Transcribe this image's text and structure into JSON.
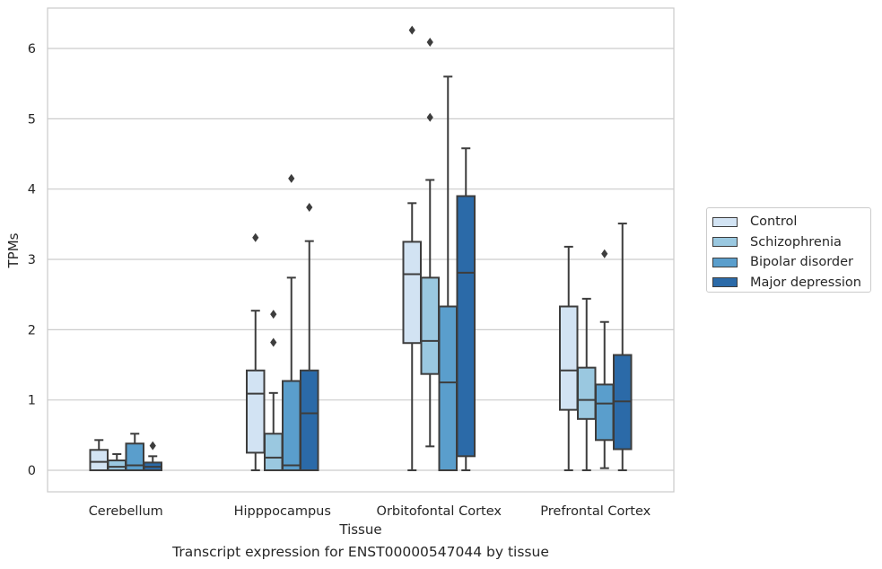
{
  "caption": "Transcript expression for ENST00000547044 by tissue",
  "chart_data": {
    "type": "box",
    "xlabel": "Tissue",
    "ylabel": "TPMs",
    "ylim": [
      -0.3,
      6.6
    ],
    "yticks": [
      0,
      1,
      2,
      3,
      4,
      5,
      6
    ],
    "grid": "horizontal",
    "legend_position": "right",
    "categories": [
      "Cerebellum",
      "Hipppocampus",
      "Orbitofontal Cortex",
      "Prefrontal Cortex"
    ],
    "series": [
      {
        "name": "Control",
        "color": "#d2e3f3",
        "boxes": [
          {
            "whislo": 0.0,
            "q1": 0.0,
            "med": 0.12,
            "q3": 0.29,
            "whishi": 0.43,
            "fliers": []
          },
          {
            "whislo": 0.0,
            "q1": 0.25,
            "med": 1.09,
            "q3": 1.42,
            "whishi": 2.27,
            "fliers": [
              3.31
            ]
          },
          {
            "whislo": 0.0,
            "q1": 1.81,
            "med": 2.79,
            "q3": 3.25,
            "whishi": 3.8,
            "fliers": [
              6.26
            ]
          },
          {
            "whislo": 0.0,
            "q1": 0.86,
            "med": 1.42,
            "q3": 2.33,
            "whishi": 3.18,
            "fliers": []
          }
        ]
      },
      {
        "name": "Schizophrenia",
        "color": "#9ac8e0",
        "boxes": [
          {
            "whislo": 0.0,
            "q1": 0.0,
            "med": 0.05,
            "q3": 0.14,
            "whishi": 0.23,
            "fliers": []
          },
          {
            "whislo": 0.0,
            "q1": 0.0,
            "med": 0.18,
            "q3": 0.52,
            "whishi": 1.1,
            "fliers": [
              1.82,
              2.22
            ]
          },
          {
            "whislo": 0.34,
            "q1": 1.37,
            "med": 1.84,
            "q3": 2.74,
            "whishi": 4.13,
            "fliers": [
              5.02,
              6.09
            ]
          },
          {
            "whislo": 0.0,
            "q1": 0.73,
            "med": 1.0,
            "q3": 1.46,
            "whishi": 2.44,
            "fliers": []
          }
        ]
      },
      {
        "name": "Bipolar disorder",
        "color": "#5a9ecc",
        "boxes": [
          {
            "whislo": 0.0,
            "q1": 0.0,
            "med": 0.07,
            "q3": 0.38,
            "whishi": 0.52,
            "fliers": []
          },
          {
            "whislo": 0.0,
            "q1": 0.0,
            "med": 0.07,
            "q3": 1.27,
            "whishi": 2.74,
            "fliers": [
              4.15
            ]
          },
          {
            "whislo": 0.0,
            "q1": 0.0,
            "med": 1.25,
            "q3": 2.33,
            "whishi": 5.6,
            "fliers": []
          },
          {
            "whislo": 0.03,
            "q1": 0.43,
            "med": 0.95,
            "q3": 1.22,
            "whishi": 2.11,
            "fliers": [
              3.08
            ]
          }
        ]
      },
      {
        "name": "Major depression",
        "color": "#2b6aa8",
        "boxes": [
          {
            "whislo": 0.0,
            "q1": 0.0,
            "med": 0.05,
            "q3": 0.11,
            "whishi": 0.2,
            "fliers": [
              0.35
            ]
          },
          {
            "whislo": 0.0,
            "q1": 0.0,
            "med": 0.81,
            "q3": 1.42,
            "whishi": 3.26,
            "fliers": [
              3.74
            ]
          },
          {
            "whislo": 0.0,
            "q1": 0.2,
            "med": 2.81,
            "q3": 3.9,
            "whishi": 4.58,
            "fliers": []
          },
          {
            "whislo": 0.0,
            "q1": 0.3,
            "med": 0.98,
            "q3": 1.64,
            "whishi": 3.51,
            "fliers": []
          }
        ]
      }
    ]
  }
}
